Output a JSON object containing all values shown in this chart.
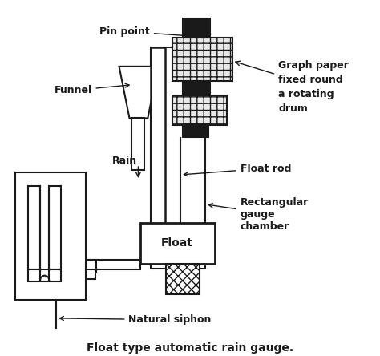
{
  "title": "Float type automatic rain gauge.",
  "bg_color": "#ffffff",
  "line_color": "#1a1a1a",
  "labels": {
    "pin_point": "Pin point",
    "funnel": "Funnel",
    "rain": "Rain",
    "float_label": "Float",
    "float_rod": "Float rod",
    "rect_chamber": "Rectangular\ngauge\nchamber",
    "graph_paper": "Graph paper\nfixed round\na rotating\ndrum",
    "natural_siphon": "Natural siphon"
  }
}
